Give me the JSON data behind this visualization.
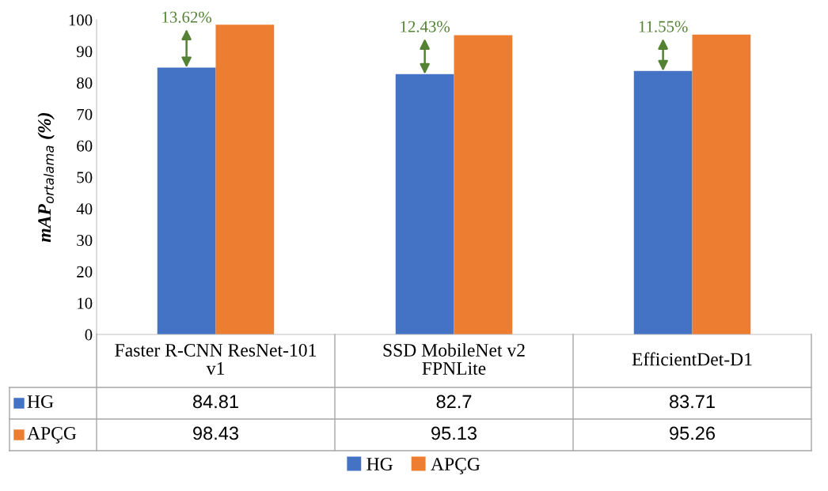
{
  "chart_data": {
    "type": "bar",
    "ylabel": "mAP$_{ortalama}$ (%)",
    "categories": [
      "Faster R-CNN ResNet-101 v1",
      "SSD MobileNet v2 FPNLite",
      "EfficientDet-D1"
    ],
    "series": [
      {
        "name": "HG",
        "color": "#4472c4",
        "values": [
          84.81,
          82.7,
          83.71
        ]
      },
      {
        "name": "APÇG",
        "color": "#ed7d31",
        "values": [
          98.43,
          95.13,
          95.26
        ]
      }
    ],
    "ylim": [
      0,
      100
    ],
    "yticks": [
      0,
      10,
      20,
      30,
      40,
      50,
      60,
      70,
      80,
      90,
      100
    ],
    "data_labels": true,
    "grid": false,
    "legend": "bottom",
    "annotations": [
      {
        "text": "13.62%",
        "x": "Faster R-CNN ResNet-101 v1",
        "y": 97
      },
      {
        "text": "12.43%",
        "x": "SSD MobileNet v2 FPNLite",
        "y": 94
      },
      {
        "text": "11.55%",
        "x": "EfficientDet-D1",
        "y": 94
      }
    ]
  }
}
